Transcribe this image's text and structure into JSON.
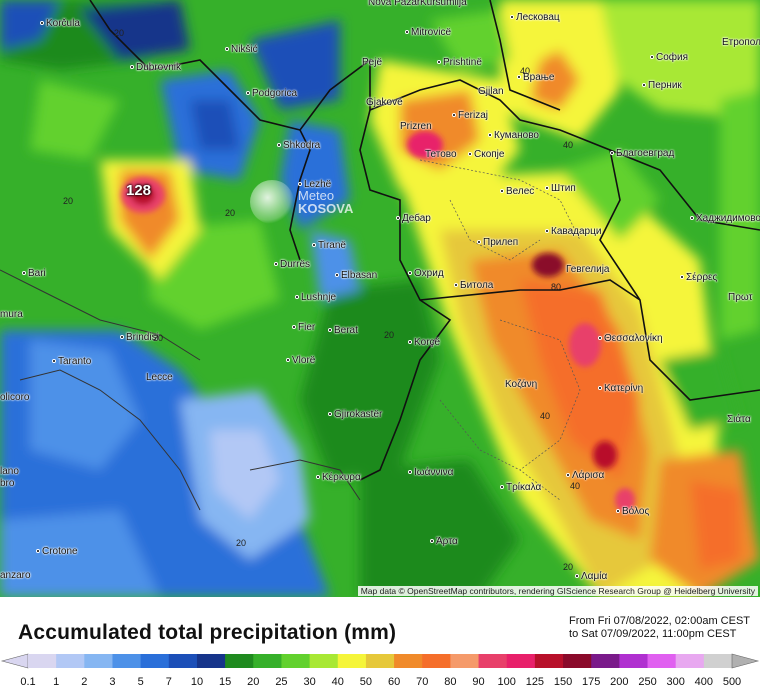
{
  "map": {
    "max_label": "128",
    "watermark": {
      "line1": "Meteo",
      "line2": "KOSOVA"
    },
    "attribution": "Map data © OpenStreetMap contributors, rendering GIScience Research Group @ Heidelberg University",
    "contour_labels": [
      "20",
      "20",
      "20",
      "20",
      "20",
      "20",
      "40",
      "40",
      "40",
      "40",
      "80",
      "20"
    ],
    "cities": [
      "Korčula",
      "Dubrovnik",
      "Nikšić",
      "Podgorica",
      "Shkodra",
      "Lezhë",
      "Tiranë",
      "Durrës",
      "Elbasan",
      "Lushnje",
      "Fier",
      "Berat",
      "Vlorë",
      "Korçë",
      "Gjirokastër",
      "Κέρκυρα",
      "Ιωάννινα",
      "Άρτα",
      "Bari",
      "Brindisi",
      "Taranto",
      "Lecce",
      "Crotone",
      "Nova Pazar",
      "Kuršumlija",
      "Лесковац",
      "Етрополе",
      "Mitrovicë",
      "Pejë",
      "Prishtinë",
      "Врање",
      "София",
      "Перник",
      "Gjilan",
      "Gjakovë",
      "Ferizaj",
      "Prizren",
      "Куманово",
      "Тетово",
      "Скопје",
      "Благоевград",
      "Велес",
      "Штип",
      "Дебар",
      "Хаджидимово",
      "Прилеп",
      "Кавадарци",
      "Охрид",
      "Гевгелија",
      "Σέρρες",
      "Битола",
      "Πρωτ",
      "Θεσσαλονίκη",
      "Κοζάνη",
      "Κατερίνη",
      "Σιάτα",
      "Λάρισα",
      "Βόλος",
      "Τρίκαλα",
      "Λαμία",
      "olicoro",
      "lano",
      "bro",
      "mura",
      "anzaro"
    ]
  },
  "footer": {
    "title": "Accumulated total precipitation (mm)",
    "date_from": "From Fri 07/08/2022, 02:00am CEST",
    "date_to": "to Sat 07/09/2022, 11:00pm CEST"
  },
  "legend": {
    "ticks": [
      "0.1",
      "1",
      "2",
      "3",
      "5",
      "7",
      "10",
      "15",
      "20",
      "25",
      "30",
      "40",
      "50",
      "60",
      "70",
      "80",
      "90",
      "100",
      "125",
      "150",
      "175",
      "200",
      "250",
      "300",
      "400",
      "500"
    ],
    "colors": [
      "#d9d6f0",
      "#b2c8f5",
      "#86b6f2",
      "#4d91e8",
      "#2a6fd9",
      "#1c4fb8",
      "#16348a",
      "#1f8a1f",
      "#36b02a",
      "#62d12e",
      "#a8e834",
      "#f5f53a",
      "#e6c83a",
      "#f08a2a",
      "#f56e2a",
      "#f59a6a",
      "#e8406a",
      "#e8206a",
      "#b8102a",
      "#8a0a2a",
      "#7a1a8a",
      "#b030d0",
      "#e060f0",
      "#e8a8f0",
      "#d0d0d0"
    ],
    "arrow_left_color": "#d9d6f0",
    "arrow_right_color": "#b0b0b0"
  }
}
